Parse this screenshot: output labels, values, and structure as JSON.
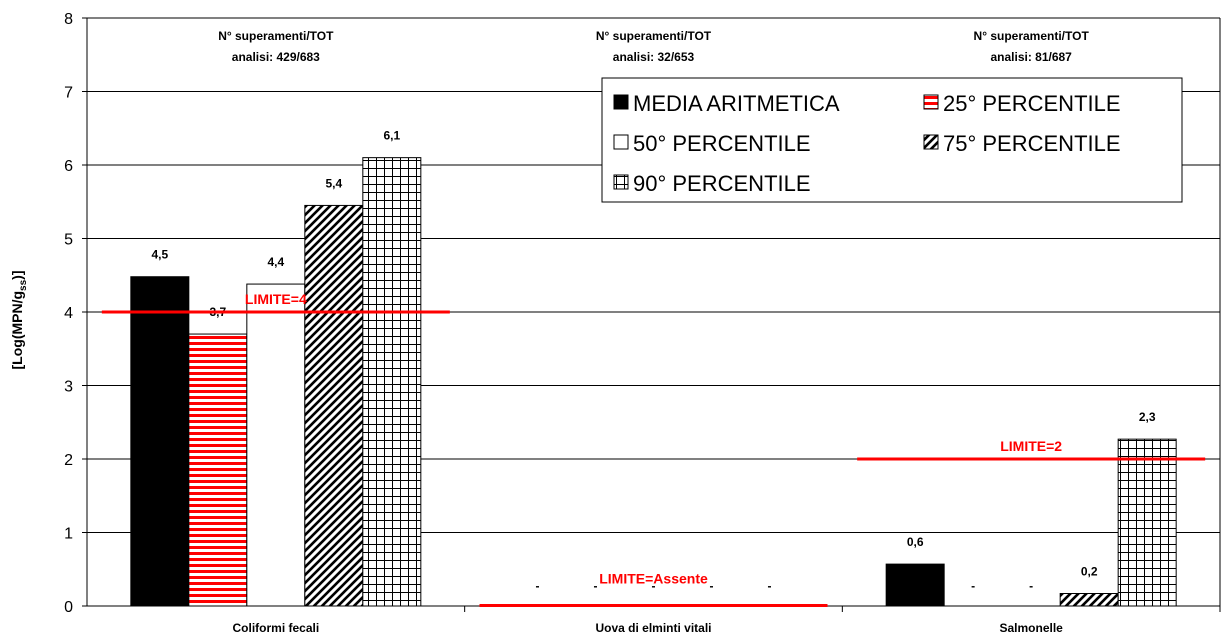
{
  "chart_data": {
    "type": "bar",
    "ylabel": "[Log(MPN/g",
    "ylabel_sub": "ss",
    "ylabel_end": ")]",
    "ylim": [
      0,
      8
    ],
    "yticks": [
      "0",
      "1",
      "2",
      "3",
      "4",
      "5",
      "6",
      "7",
      "8"
    ],
    "grid": true,
    "legend_position": "top-right",
    "categories": [
      "Coliformi fecali",
      "Uova di elminti vitali",
      "Salmonelle"
    ],
    "series": [
      {
        "name": "MEDIA ARITMETICA",
        "pattern": "solid-black",
        "values": [
          4.48,
          null,
          0.57
        ],
        "labels": [
          "4,5",
          "-",
          "0,6"
        ]
      },
      {
        "name": "25° PERCENTILE",
        "pattern": "red-horizontal-stripes",
        "values": [
          3.7,
          null,
          null
        ],
        "labels": [
          "3,7",
          "-",
          "-"
        ]
      },
      {
        "name": "50° PERCENTILE",
        "pattern": "white",
        "values": [
          4.38,
          null,
          null
        ],
        "labels": [
          "4,4",
          "-",
          "-"
        ]
      },
      {
        "name": "75° PERCENTILE",
        "pattern": "diagonal-hatch",
        "values": [
          5.45,
          null,
          0.17
        ],
        "labels": [
          "5,4",
          "-",
          "0,2"
        ]
      },
      {
        "name": "90° PERCENTILE",
        "pattern": "grid",
        "values": [
          6.1,
          null,
          2.27
        ],
        "labels": [
          "6,1",
          "-",
          "2,3"
        ]
      }
    ],
    "annotations": [
      {
        "category": 0,
        "line1": "N° superamenti/TOT",
        "line2": "analisi: 429/683"
      },
      {
        "category": 1,
        "line1": "N° superamenti/TOT",
        "line2": "analisi: 32/653"
      },
      {
        "category": 2,
        "line1": "N° superamenti/TOT",
        "line2": "analisi: 81/687"
      }
    ],
    "limits": [
      {
        "category": 0,
        "value": 4,
        "label": "LIMITE=4"
      },
      {
        "category": 1,
        "value": 0,
        "label": "LIMITE=Assente"
      },
      {
        "category": 2,
        "value": 2,
        "label": "LIMITE=2"
      }
    ],
    "colors": {
      "limit": "#ff0000",
      "stripe": "#ff0000",
      "bar_stroke": "#000000",
      "grid": "#000000"
    }
  }
}
